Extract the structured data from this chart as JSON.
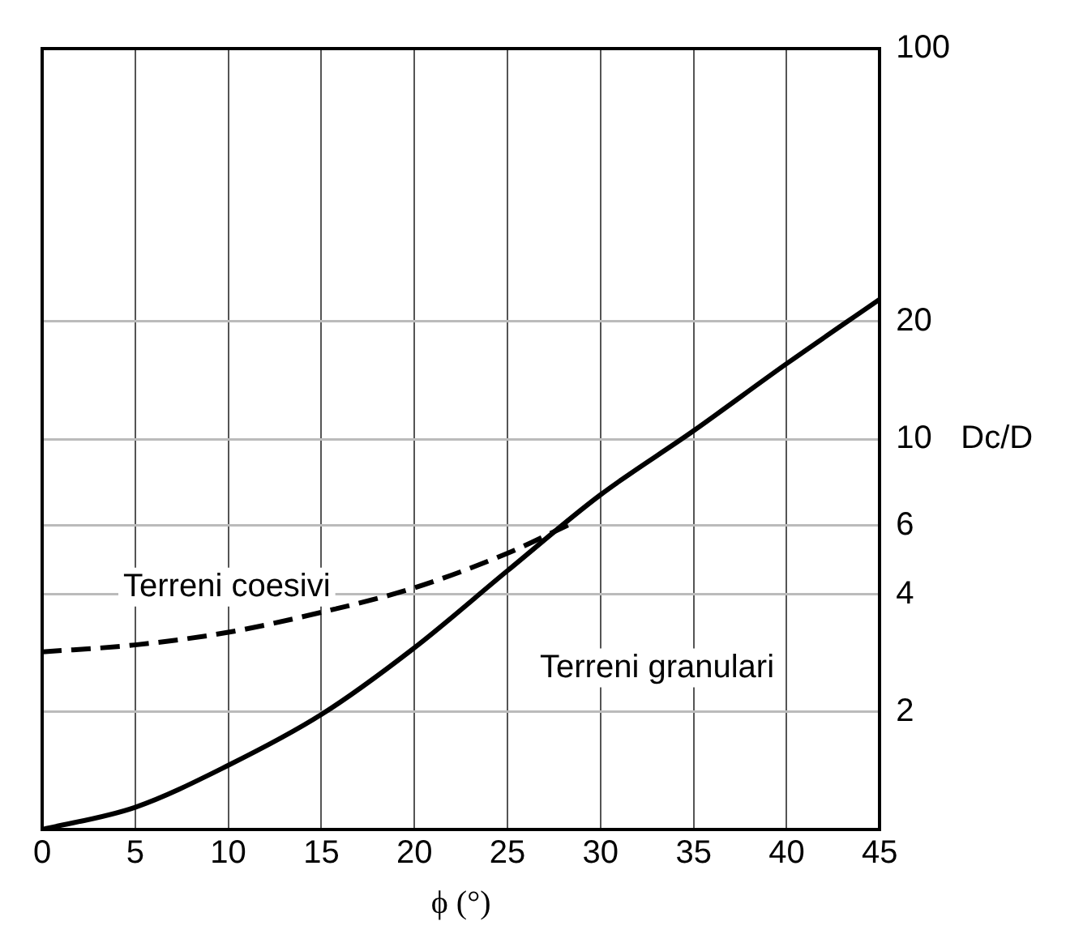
{
  "chart_data": {
    "type": "line",
    "xlabel": "ϕ (°)",
    "ylabel": "Dc/D",
    "log": "y",
    "grid": true,
    "legend": false,
    "marker": "none",
    "xlim": [
      0,
      45
    ],
    "xticks": [
      0,
      5,
      10,
      15,
      20,
      25,
      30,
      35,
      40,
      45
    ],
    "ylim": [
      1,
      100
    ],
    "yticks": [
      2,
      4,
      6,
      10,
      20,
      100
    ],
    "series": [
      {
        "name": "Terreni coesivi",
        "color": "#000000",
        "line_style": "dashed",
        "x": [
          0,
          5,
          10,
          15,
          20,
          25,
          28.5
        ],
        "values": [
          2.85,
          2.97,
          3.2,
          3.6,
          4.16,
          5.1,
          6.1
        ]
      },
      {
        "name": "Terreni granulari",
        "color": "#000000",
        "line_style": "solid",
        "x": [
          0,
          5,
          10,
          15,
          20,
          25,
          30,
          35,
          40,
          45
        ],
        "values": [
          1.0,
          1.14,
          1.46,
          1.97,
          2.92,
          4.6,
          7.2,
          10.5,
          15.6,
          22.8
        ]
      }
    ]
  }
}
